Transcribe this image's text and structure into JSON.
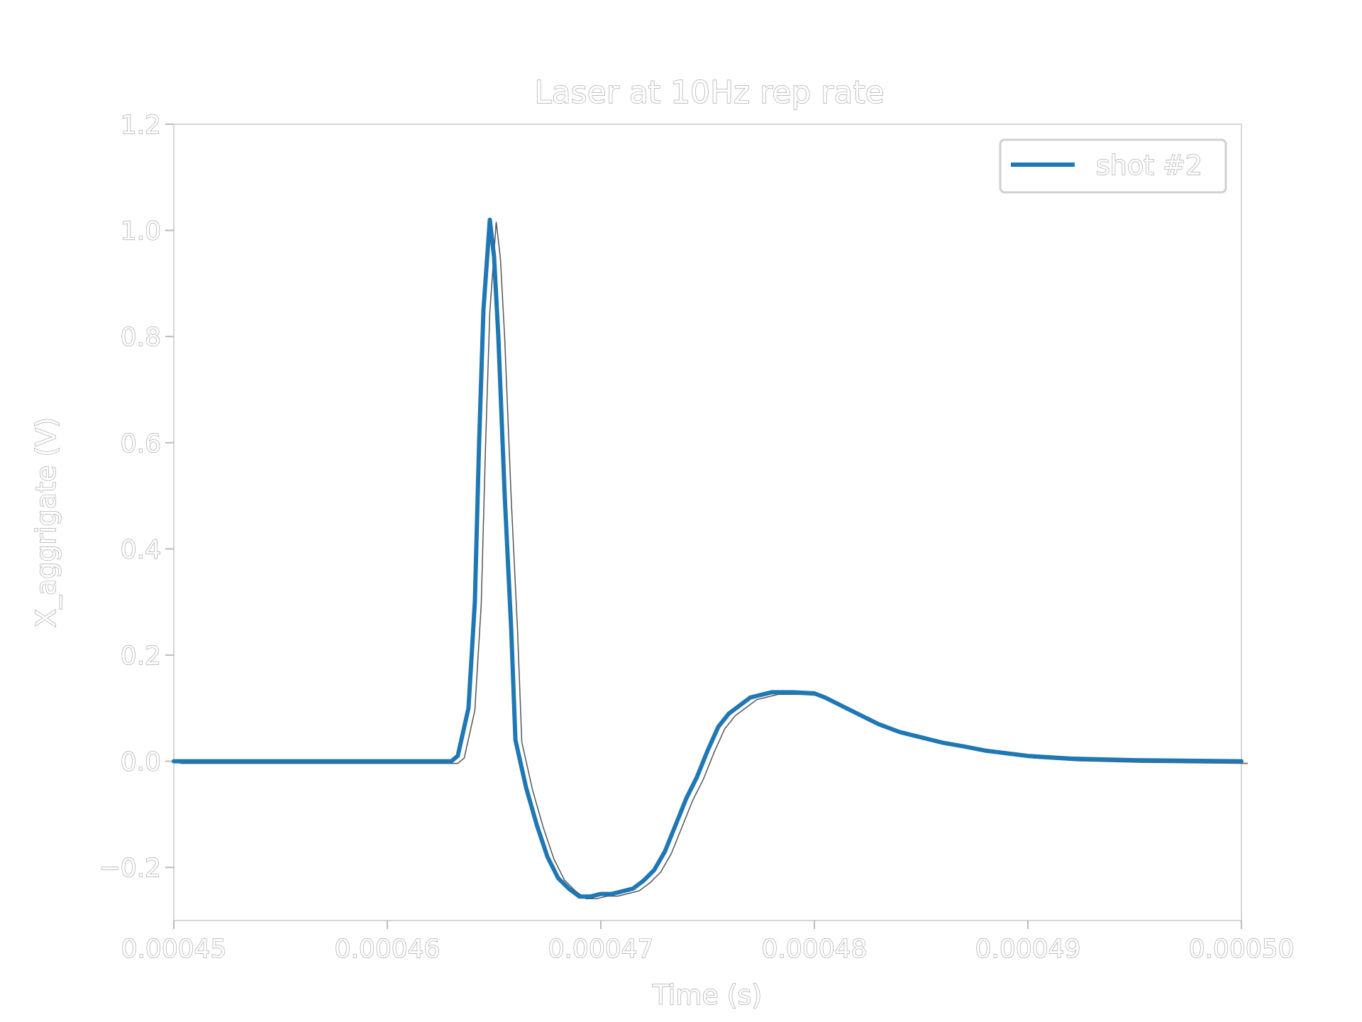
{
  "chart_data": {
    "type": "line",
    "title": "Laser at 10Hz rep rate",
    "xlabel": "Time (s)",
    "ylabel": "X_aggrigate (V)",
    "xlim": [
      0.00045,
      0.0005
    ],
    "ylim": [
      -0.3,
      1.2
    ],
    "xticks": [
      0.00045,
      0.00046,
      0.00047,
      0.00048,
      0.00049,
      0.0005
    ],
    "xtick_labels": [
      "0.00045",
      "0.00046",
      "0.00047",
      "0.00048",
      "0.00049",
      "0.00050"
    ],
    "yticks": [
      -0.2,
      0.0,
      0.2,
      0.4,
      0.6,
      0.8,
      1.0,
      1.2
    ],
    "ytick_labels": [
      "−0.2",
      "0.0",
      "0.2",
      "0.4",
      "0.6",
      "0.8",
      "1.0",
      "1.2"
    ],
    "grid": false,
    "legend": {
      "position": "top-right",
      "entries": [
        "shot #2"
      ]
    },
    "series": [
      {
        "name": "shot #2",
        "color": "#1f77b4",
        "x": [
          0.00045,
          0.000455,
          0.00046,
          0.000462,
          0.000463,
          0.0004633,
          0.0004638,
          0.0004641,
          0.0004643,
          0.0004645,
          0.0004648,
          0.000465,
          0.0004652,
          0.0004655,
          0.0004658,
          0.000466,
          0.0004665,
          0.000467,
          0.0004675,
          0.000468,
          0.0004685,
          0.000469,
          0.0004695,
          0.00047,
          0.0004705,
          0.000471,
          0.0004715,
          0.000472,
          0.0004725,
          0.000473,
          0.0004735,
          0.000474,
          0.0004745,
          0.000475,
          0.0004755,
          0.000476,
          0.0004765,
          0.000477,
          0.0004775,
          0.000478,
          0.000479,
          0.00048,
          0.0004805,
          0.000481,
          0.000482,
          0.000483,
          0.000484,
          0.000485,
          0.000486,
          0.000487,
          0.000488,
          0.000489,
          0.00049,
          0.000492,
          0.000495,
          0.0005
        ],
        "y": [
          0.0,
          0.0,
          0.0,
          0.0,
          0.0,
          0.01,
          0.1,
          0.3,
          0.6,
          0.85,
          1.02,
          0.95,
          0.8,
          0.5,
          0.25,
          0.04,
          -0.05,
          -0.12,
          -0.18,
          -0.22,
          -0.24,
          -0.255,
          -0.255,
          -0.25,
          -0.25,
          -0.245,
          -0.24,
          -0.225,
          -0.205,
          -0.17,
          -0.12,
          -0.07,
          -0.03,
          0.02,
          0.065,
          0.09,
          0.105,
          0.12,
          0.125,
          0.13,
          0.13,
          0.128,
          0.12,
          0.11,
          0.09,
          0.07,
          0.055,
          0.045,
          0.035,
          0.028,
          0.02,
          0.015,
          0.01,
          0.005,
          0.002,
          0.0
        ]
      }
    ]
  }
}
